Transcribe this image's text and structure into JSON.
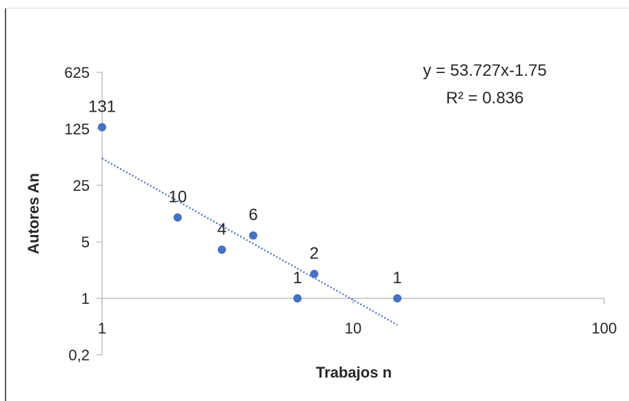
{
  "chart_data": {
    "type": "scatter",
    "title": "",
    "xlabel": "Trabajos n",
    "ylabel": "Autores An",
    "x_scale": "log",
    "y_scale": "log",
    "xlim": [
      1,
      100
    ],
    "ylim": [
      0.2,
      625
    ],
    "x_ticks": [
      {
        "value": 1,
        "label": "1"
      },
      {
        "value": 10,
        "label": "10"
      },
      {
        "value": 100,
        "label": "100"
      }
    ],
    "y_ticks": [
      {
        "value": 0.2,
        "label": "0,2"
      },
      {
        "value": 1,
        "label": "1"
      },
      {
        "value": 5,
        "label": "5"
      },
      {
        "value": 25,
        "label": "25"
      },
      {
        "value": 125,
        "label": "125"
      },
      {
        "value": 625,
        "label": "625"
      }
    ],
    "x_axis_crosses_y_at": 1,
    "gridlines": false,
    "points": [
      {
        "x": 1,
        "y": 131,
        "label": "131"
      },
      {
        "x": 2,
        "y": 10,
        "label": "10"
      },
      {
        "x": 3,
        "y": 4,
        "label": "4"
      },
      {
        "x": 4,
        "y": 6,
        "label": "6"
      },
      {
        "x": 6,
        "y": 1,
        "label": "1"
      },
      {
        "x": 7,
        "y": 2,
        "label": "2"
      },
      {
        "x": 15,
        "y": 1,
        "label": "1"
      }
    ],
    "trendline": {
      "type": "power",
      "coefficient": 53.727,
      "exponent": -1.75,
      "x_range": [
        1,
        15
      ],
      "style": "dotted",
      "equation_label": "y = 53.727x-1.75",
      "r2_label": "R² = 0.836"
    },
    "colors": {
      "marker": "#4472c4",
      "trendline": "#4472c4",
      "axis": "#bfbfbf",
      "text": "#262626"
    }
  }
}
